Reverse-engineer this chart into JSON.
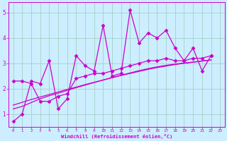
{
  "xlabel": "Windchill (Refroidissement éolien,°C)",
  "bg_color": "#cceeff",
  "line_color": "#cc00cc",
  "xlim": [
    -0.5,
    23.5
  ],
  "ylim": [
    0.5,
    5.4
  ],
  "xticks": [
    0,
    1,
    2,
    3,
    4,
    5,
    6,
    7,
    8,
    9,
    10,
    11,
    12,
    13,
    14,
    15,
    16,
    17,
    18,
    19,
    20,
    21,
    22,
    23
  ],
  "yticks": [
    1,
    2,
    3,
    4,
    5
  ],
  "grid_color": "#99ccbb",
  "x_data": [
    0,
    1,
    2,
    3,
    4,
    5,
    6,
    7,
    8,
    9,
    10,
    11,
    12,
    13,
    14,
    15,
    16,
    17,
    18,
    19,
    20,
    21,
    22
  ],
  "jagged": [
    0.7,
    1.0,
    2.3,
    2.2,
    3.1,
    1.2,
    1.6,
    3.3,
    2.9,
    2.7,
    4.5,
    2.5,
    2.6,
    5.1,
    3.8,
    4.2,
    4.0,
    4.3,
    3.6,
    3.1,
    3.6,
    2.7,
    3.3
  ],
  "smooth1": [
    2.3,
    2.3,
    2.2,
    1.5,
    1.5,
    1.7,
    1.8,
    2.4,
    2.5,
    2.6,
    2.6,
    2.7,
    2.8,
    2.9,
    3.0,
    3.1,
    3.1,
    3.2,
    3.1,
    3.1,
    3.2,
    3.2,
    3.3
  ],
  "trend1": [
    1.2,
    1.3,
    1.45,
    1.6,
    1.72,
    1.82,
    1.93,
    2.04,
    2.14,
    2.24,
    2.34,
    2.44,
    2.53,
    2.62,
    2.71,
    2.79,
    2.86,
    2.92,
    2.97,
    3.01,
    3.05,
    3.09,
    3.13
  ],
  "trend2": [
    1.35,
    1.46,
    1.57,
    1.67,
    1.77,
    1.87,
    1.97,
    2.06,
    2.16,
    2.25,
    2.34,
    2.43,
    2.52,
    2.6,
    2.68,
    2.76,
    2.83,
    2.89,
    2.95,
    3.0,
    3.04,
    3.09,
    3.13
  ],
  "marker": "D",
  "markersize": 2.5,
  "linewidth": 0.9
}
